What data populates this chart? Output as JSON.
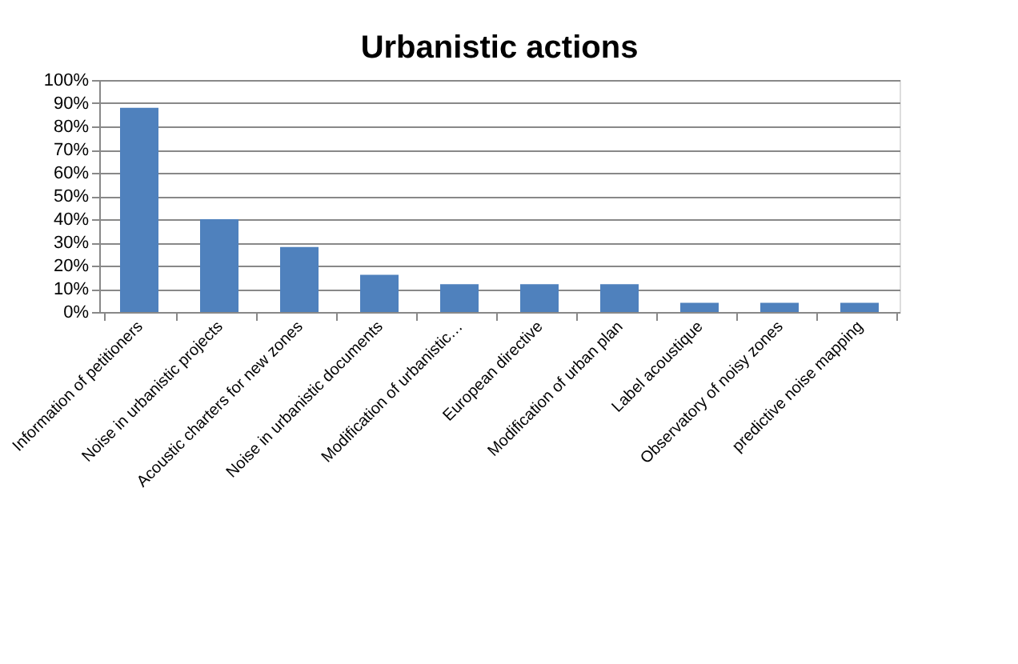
{
  "chart_data": {
    "type": "bar",
    "title": "Urbanistic actions",
    "categories": [
      "Information of petitioners",
      "Noise in urbanistic projects",
      "Acoustic charters for new zones",
      "Noise in urbanistic documents",
      "Modification of urbanistic…",
      "European directive",
      "Modification of urban plan",
      "Label acoustique",
      "Observatory of noisy zones",
      "predictive noise mapping"
    ],
    "values": [
      88,
      40,
      28,
      16,
      12,
      12,
      12,
      4,
      4,
      4
    ],
    "color": "#4f81bd",
    "ylim": [
      0,
      100
    ],
    "yticks": [
      {
        "value": 0,
        "label": "0%"
      },
      {
        "value": 10,
        "label": "10%"
      },
      {
        "value": 20,
        "label": "20%"
      },
      {
        "value": 30,
        "label": "30%"
      },
      {
        "value": 40,
        "label": "40%"
      },
      {
        "value": 50,
        "label": "50%"
      },
      {
        "value": 60,
        "label": "60%"
      },
      {
        "value": 70,
        "label": "70%"
      },
      {
        "value": 80,
        "label": "80%"
      },
      {
        "value": 90,
        "label": "90%"
      },
      {
        "value": 100,
        "label": "100%"
      }
    ],
    "grid": "y"
  }
}
